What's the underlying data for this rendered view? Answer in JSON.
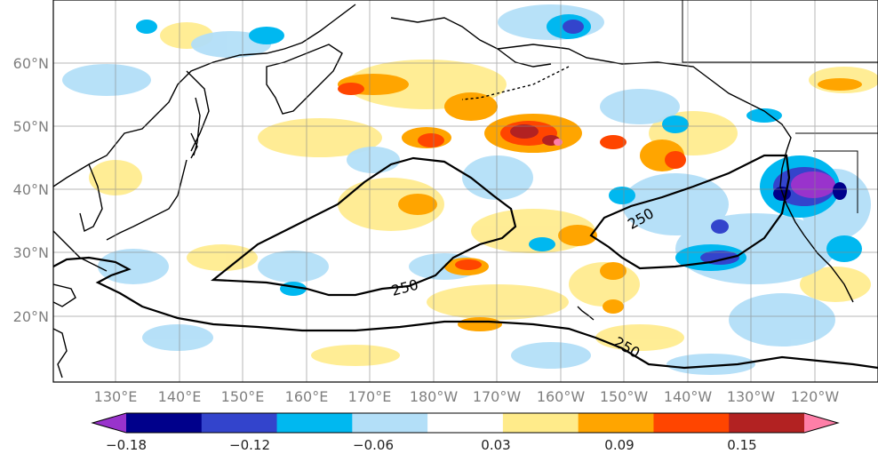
{
  "map": {
    "lon_labels": [
      "130°E",
      "140°E",
      "150°E",
      "160°E",
      "170°E",
      "180°W",
      "170°W",
      "160°W",
      "150°W",
      "140°W",
      "130°W",
      "120°W"
    ],
    "lat_labels": [
      "60°N",
      "50°N",
      "40°N",
      "30°N",
      "20°N"
    ],
    "contour_label": "250"
  },
  "colorbar": {
    "colors": [
      "#9933cc",
      "#00008b",
      "#3344cc",
      "#00b8f0",
      "#b3dff8",
      "#ffffff",
      "#ffeb8a",
      "#ffa500",
      "#ff4500",
      "#b22222",
      "#ff7fa8"
    ],
    "tick_labels": [
      "−0.18",
      "−0.12",
      "−0.06",
      "0.03",
      "0.09",
      "0.15"
    ]
  }
}
